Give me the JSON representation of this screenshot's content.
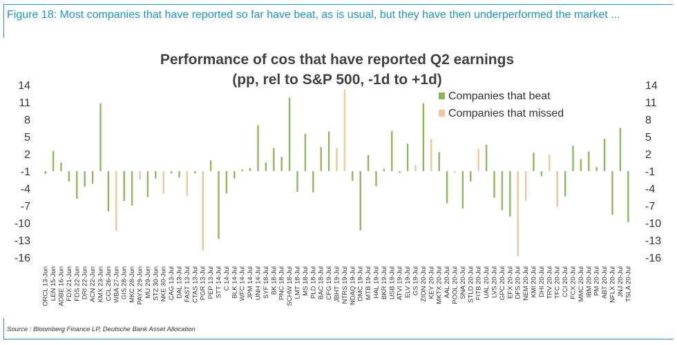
{
  "figure": {
    "title": "Figure 18: Most companies that have reported so far have beat, as is usual, but they have then underperformed the market ...",
    "source": "Source : Bloomberg Finance LP, Deutsche Bank Asset Allocation"
  },
  "colors": {
    "beat": "#8db85a",
    "missed": "#f2c59a",
    "frame": "#1a98c6",
    "axis_text": "#333333",
    "title_text": "#404040"
  },
  "chart_data": {
    "type": "bar",
    "title_line1": "Performance of cos that have reported Q2 earnings",
    "title_line2": "(pp, rel to S&P 500, -1d to +1d)",
    "xlabel": "",
    "ylabel": "",
    "ylim": [
      -16,
      14
    ],
    "yticks": [
      14,
      11,
      8,
      5,
      2,
      -1,
      -4,
      -7,
      -10,
      -13,
      -16
    ],
    "grid": false,
    "legend": "top-right",
    "series": [
      {
        "name": "Companies that beat",
        "color": "#8db85a"
      },
      {
        "name": "Companies that missed",
        "color": "#f2c59a"
      }
    ],
    "bars": [
      {
        "label": "ORCL 13-Jun",
        "value": -1.5,
        "group": "beat"
      },
      {
        "label": "LEN 15-Jun",
        "value": 2.5,
        "group": "beat"
      },
      {
        "label": "ADBE 16-Jun",
        "value": 0.5,
        "group": "beat"
      },
      {
        "label": "FDX 21-Jun",
        "value": -2.8,
        "group": "beat"
      },
      {
        "label": "FDS 22-Jun",
        "value": -5.8,
        "group": "beat"
      },
      {
        "label": "DRI 22-Jun",
        "value": -3.7,
        "group": "beat"
      },
      {
        "label": "ACN 22-Jun",
        "value": -3.2,
        "group": "beat"
      },
      {
        "label": "KMX 23-Jun",
        "value": 10.8,
        "group": "beat"
      },
      {
        "label": "CCL 26-Jun",
        "value": -8.0,
        "group": "beat"
      },
      {
        "label": "WBA 27-Jun",
        "value": -11.4,
        "group": "missed"
      },
      {
        "label": "GIS 28-Jun",
        "value": -6.2,
        "group": "beat"
      },
      {
        "label": "MKC 28-Jun",
        "value": -7.0,
        "group": "beat"
      },
      {
        "label": "PAYX 29-Jun",
        "value": -2.5,
        "group": "missed"
      },
      {
        "label": "MU 29-Jun",
        "value": -5.5,
        "group": "beat"
      },
      {
        "label": "STZ 30-Jun",
        "value": -2.3,
        "group": "beat"
      },
      {
        "label": "NKE 30-Jun",
        "value": -4.9,
        "group": "missed"
      },
      {
        "label": "CAG 13-Jul",
        "value": -1.4,
        "group": "beat"
      },
      {
        "label": "DAL 13-Jul",
        "value": -2.1,
        "group": "beat"
      },
      {
        "label": "FAST 13-Jul",
        "value": -5.3,
        "group": "missed"
      },
      {
        "label": "CTAS 13-Jul",
        "value": -1.4,
        "group": "beat"
      },
      {
        "label": "PGR 13-Jul",
        "value": -14.8,
        "group": "missed"
      },
      {
        "label": "PEP 13-Jul",
        "value": 0.9,
        "group": "beat"
      },
      {
        "label": "STT 14-Jul",
        "value": -12.8,
        "group": "beat"
      },
      {
        "label": "C 14-Jul",
        "value": -4.9,
        "group": "beat"
      },
      {
        "label": "BLK 14-Jul",
        "value": -2.3,
        "group": "beat"
      },
      {
        "label": "WFC 14-Jul",
        "value": -0.7,
        "group": "beat"
      },
      {
        "label": "JPM 14-Jul",
        "value": -0.5,
        "group": "beat"
      },
      {
        "label": "UNH 14-Jul",
        "value": 7.0,
        "group": "beat"
      },
      {
        "label": "SYF 18-Jul",
        "value": 0.5,
        "group": "beat"
      },
      {
        "label": "BK 18-Jul",
        "value": 3.0,
        "group": "beat"
      },
      {
        "label": "PNC 18-Jul",
        "value": 1.5,
        "group": "beat"
      },
      {
        "label": "SCHW 18-Jul",
        "value": 11.8,
        "group": "beat"
      },
      {
        "label": "LMT 18-Jul",
        "value": -4.6,
        "group": "beat"
      },
      {
        "label": "MS 18-Jul",
        "value": 5.5,
        "group": "beat"
      },
      {
        "label": "PLD 18-Jul",
        "value": -4.7,
        "group": "beat"
      },
      {
        "label": "BAC 18-Jul",
        "value": 3.2,
        "group": "beat"
      },
      {
        "label": "CFG 19-Jul",
        "value": 5.9,
        "group": "beat"
      },
      {
        "label": "JBHT 19-Jul",
        "value": 3.0,
        "group": "missed"
      },
      {
        "label": "NTRS 19-Jul",
        "value": 13.2,
        "group": "missed"
      },
      {
        "label": "NDAQ 19-Jul",
        "value": -2.7,
        "group": "beat"
      },
      {
        "label": "OMC 19-Jul",
        "value": -11.3,
        "group": "beat"
      },
      {
        "label": "MTB 19-Jul",
        "value": 1.8,
        "group": "beat"
      },
      {
        "label": "HAL 19-Jul",
        "value": -3.6,
        "group": "beat"
      },
      {
        "label": "BKR 19-Jul",
        "value": -0.6,
        "group": "beat"
      },
      {
        "label": "USB 19-Jul",
        "value": 6.0,
        "group": "beat"
      },
      {
        "label": "ATVI 19-Jul",
        "value": -1.3,
        "group": "beat"
      },
      {
        "label": "ELV 19-Jul",
        "value": 3.8,
        "group": "beat"
      },
      {
        "label": "GS 19-Jul",
        "value": 0.1,
        "group": "missed"
      },
      {
        "label": "ZION 20-Jul",
        "value": 10.8,
        "group": "beat"
      },
      {
        "label": "KEY 20-Jul",
        "value": 4.6,
        "group": "missed"
      },
      {
        "label": "MKTX 20-Jul",
        "value": 2.3,
        "group": "beat"
      },
      {
        "label": "AAL 20-Jul",
        "value": -6.6,
        "group": "beat"
      },
      {
        "label": "POOL 20-Jul",
        "value": -1.3,
        "group": "missed"
      },
      {
        "label": "SNA 20-Jul",
        "value": -7.5,
        "group": "beat"
      },
      {
        "label": "STLD 20-Jul",
        "value": -2.8,
        "group": "beat"
      },
      {
        "label": "FITB 20-Jul",
        "value": 2.9,
        "group": "missed"
      },
      {
        "label": "UAL 20-Jul",
        "value": 3.6,
        "group": "beat"
      },
      {
        "label": "LVS 20-Jul",
        "value": -5.6,
        "group": "beat"
      },
      {
        "label": "GPC 20-Jul",
        "value": -7.8,
        "group": "beat"
      },
      {
        "label": "EFX 20-Jul",
        "value": -8.9,
        "group": "beat"
      },
      {
        "label": "DFS 20-Jul",
        "value": -15.8,
        "group": "missed"
      },
      {
        "label": "NEM 20-Jul",
        "value": -6.2,
        "group": "missed"
      },
      {
        "label": "KMI 20-Jul",
        "value": 2.2,
        "group": "beat"
      },
      {
        "label": "DHI 20-Jul",
        "value": -1.9,
        "group": "beat"
      },
      {
        "label": "TRV 20-Jul",
        "value": 1.9,
        "group": "missed"
      },
      {
        "label": "TFC 20-Jul",
        "value": -7.2,
        "group": "missed"
      },
      {
        "label": "CCI 20-Jul",
        "value": -5.4,
        "group": "beat"
      },
      {
        "label": "FCX 20-Jul",
        "value": 3.4,
        "group": "beat"
      },
      {
        "label": "MMC 20-Jul",
        "value": 1.1,
        "group": "beat"
      },
      {
        "label": "IBM 20-Jul",
        "value": 2.4,
        "group": "beat"
      },
      {
        "label": "PM 20-Jul",
        "value": -0.3,
        "group": "beat"
      },
      {
        "label": "ABT 20-Jul",
        "value": 4.6,
        "group": "beat"
      },
      {
        "label": "NFLX 20-Jul",
        "value": -8.6,
        "group": "beat"
      },
      {
        "label": "JNJ 20-Jul",
        "value": 6.5,
        "group": "beat"
      },
      {
        "label": "TSLA 20-Jul",
        "value": -9.9,
        "group": "beat"
      }
    ]
  }
}
